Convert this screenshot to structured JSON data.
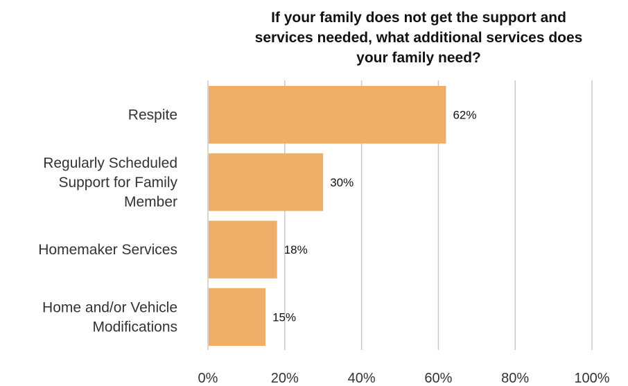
{
  "chart_data": {
    "type": "bar",
    "orientation": "horizontal",
    "title": [
      "If your family does not get the support and",
      "services needed, what additional services does",
      "your family need?"
    ],
    "categories": [
      [
        "Respite"
      ],
      [
        "Regularly Scheduled",
        "Support for Family",
        "Member"
      ],
      [
        "Homemaker Services"
      ],
      [
        "Home and/or Vehicle",
        "Modifications"
      ]
    ],
    "values": [
      62,
      30,
      18,
      15
    ],
    "data_labels": [
      "62%",
      "30%",
      "18%",
      "15%"
    ],
    "xlim": [
      0,
      100
    ],
    "x_ticks": [
      0,
      20,
      40,
      60,
      80,
      100
    ],
    "x_tick_labels": [
      "0%",
      "20%",
      "40%",
      "60%",
      "80%",
      "100%"
    ],
    "grid": true,
    "colors": {
      "bar": "#f0ae69",
      "grid": "#c8c8c8"
    }
  }
}
